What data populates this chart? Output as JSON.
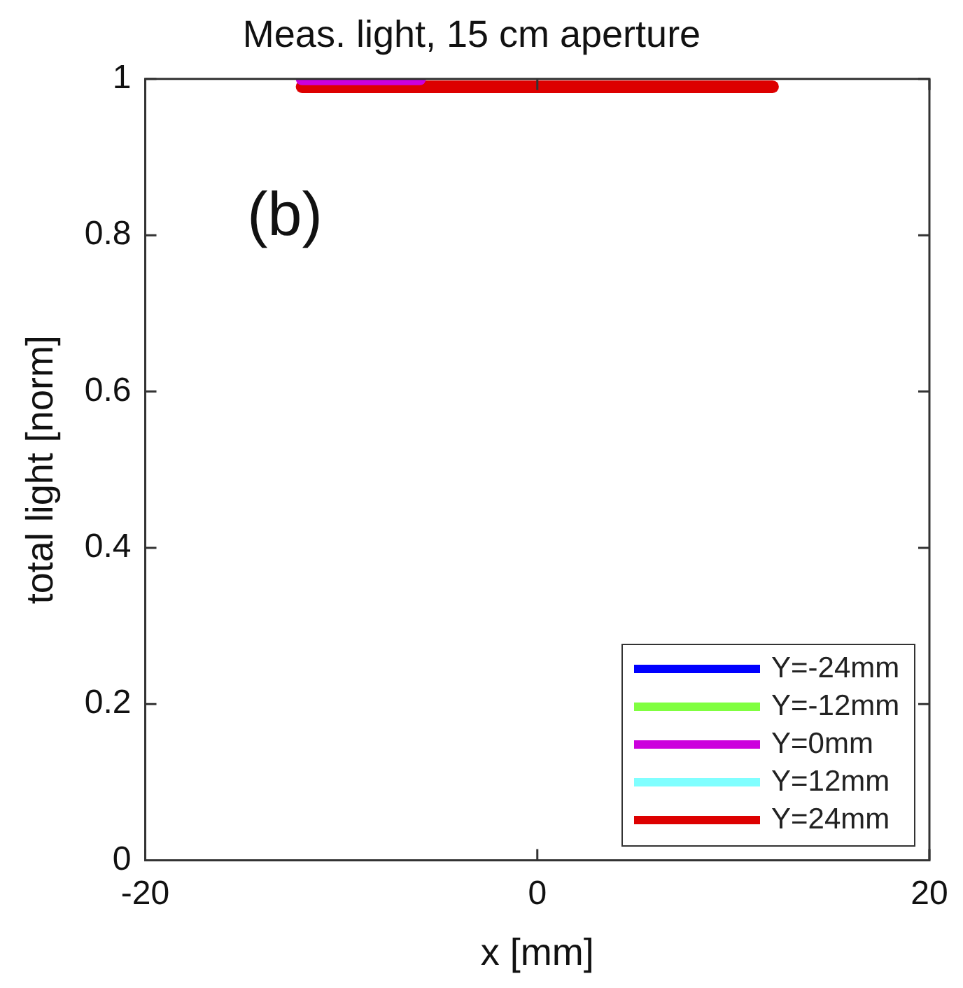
{
  "chart_data": {
    "type": "line",
    "title": "Meas. light, 15 cm aperture",
    "xlabel": "x [mm]",
    "ylabel": "total light [norm]",
    "x": [
      -12,
      -6,
      0,
      6,
      12
    ],
    "series": [
      {
        "name": "Y=-24mm",
        "color": "#0000ff",
        "values": [
          null,
          null,
          null,
          null,
          null
        ]
      },
      {
        "name": "Y=-12mm",
        "color": "#80ff40",
        "values": [
          null,
          null,
          null,
          null,
          null
        ]
      },
      {
        "name": "Y=0mm",
        "color": "#cc00dd",
        "values": [
          1,
          1,
          null,
          null,
          null
        ]
      },
      {
        "name": "Y=12mm",
        "color": "#80ffff",
        "values": [
          null,
          null,
          null,
          null,
          null
        ]
      },
      {
        "name": "Y=24mm",
        "color": "#dd0000",
        "values": [
          0.99,
          0.99,
          0.99,
          0.99,
          0.99
        ]
      }
    ],
    "xlim": [
      -20,
      20
    ],
    "xticks": [
      -20,
      0,
      20
    ],
    "ylim": [
      0,
      1
    ],
    "yticks": [
      0,
      0.2,
      0.4,
      0.6,
      0.8,
      1
    ],
    "annotations": [
      "(b)"
    ],
    "grid": false,
    "legend": "bottom right",
    "marker": "none",
    "line_style": "solid"
  }
}
